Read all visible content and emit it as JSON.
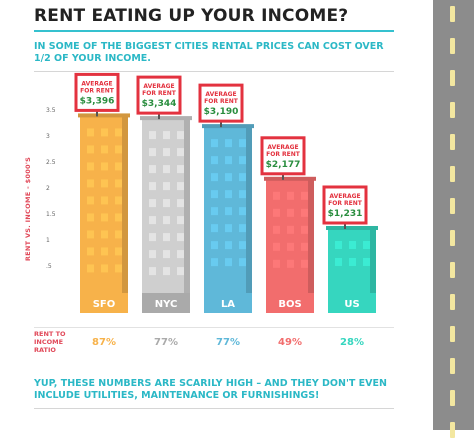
{
  "title": "RENT EATING UP YOUR INCOME?",
  "subtitle": "IN SOME OF THE BIGGEST CITIES  RENTAL PRICES  CAN COST OVER 1/2 OF YOUR INCOME.",
  "footer": "YUP, THESE NUMBERS ARE SCARILY HIGH – AND THEY DON'T EVEN INCLUDE UTILITIES, MAINTENANCE OR FURNISHINGS!",
  "ratio_label": "RENT TO INCOME RATIO",
  "sign_label": "AVERAGE FOR RENT",
  "chart_data": {
    "type": "bar",
    "ylabel": "RENT VS. INCOME - $000'S",
    "yticks": [
      "3.5",
      "3",
      "2.5",
      "2",
      "1.5",
      "1",
      ".5"
    ],
    "ylim": [
      0,
      3.5
    ],
    "grid": false,
    "categories": [
      "SFO",
      "NYC",
      "LA",
      "BOS",
      "US"
    ],
    "values": [
      3396,
      3344,
      3190,
      2177,
      1231
    ],
    "value_labels": [
      "$3,396",
      "$3,344",
      "$3,190",
      "$2,177",
      "$1,231"
    ],
    "ratios": [
      "87%",
      "77%",
      "77%",
      "49%",
      "28%"
    ],
    "colors": [
      "#f7b24a",
      "#cfcfcf",
      "#5fb8d9",
      "#f26d6d",
      "#36d6bf"
    ],
    "label_colors": [
      "#f7b24a",
      "#aaaaaa",
      "#5fb8d9",
      "#f26d6d",
      "#36d6bf"
    ],
    "sign_colors": {
      "border": "#e3323f",
      "label": "#e3323f",
      "value": "#2a8e3f"
    }
  }
}
